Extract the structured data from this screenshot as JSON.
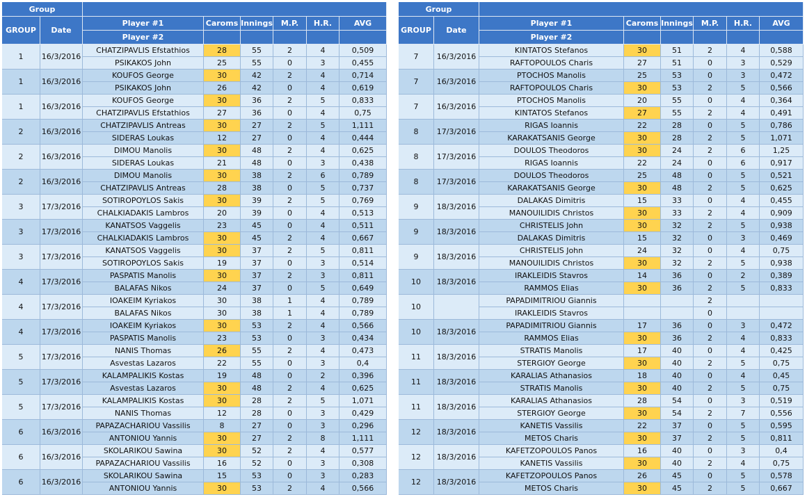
{
  "tables": [
    {
      "header": {
        "group_band": "Group",
        "group": "GROUP",
        "date": "Date",
        "player1": "Player #1",
        "player2": "Player #2",
        "caroms": "Caroms",
        "innings": "Innings",
        "mp": "M.P.",
        "hr": "H.R.",
        "avg": "AVG"
      },
      "matches": [
        {
          "group": 1,
          "date": "16/3/2016",
          "players": [
            [
              "CHATZIPAVLIS Efstathios",
              28,
              55,
              2,
              4,
              "0,509"
            ],
            [
              "PSIKAKOS John",
              25,
              55,
              0,
              3,
              "0,455"
            ]
          ]
        },
        {
          "group": 1,
          "date": "16/3/2016",
          "players": [
            [
              "KOUFOS George",
              30,
              42,
              2,
              4,
              "0,714"
            ],
            [
              "PSIKAKOS John",
              26,
              42,
              0,
              4,
              "0,619"
            ]
          ]
        },
        {
          "group": 1,
          "date": "16/3/2016",
          "players": [
            [
              "KOUFOS George",
              30,
              36,
              2,
              5,
              "0,833"
            ],
            [
              "CHATZIPAVLIS Efstathios",
              27,
              36,
              0,
              4,
              "0,75"
            ]
          ]
        },
        {
          "group": 2,
          "date": "16/3/2016",
          "players": [
            [
              "CHATZIPAVLIS Antreas",
              30,
              27,
              2,
              5,
              "1,111"
            ],
            [
              "SIDERAS Loukas",
              12,
              27,
              0,
              4,
              "0,444"
            ]
          ]
        },
        {
          "group": 2,
          "date": "16/3/2016",
          "players": [
            [
              "DIMOU Manolis",
              30,
              48,
              2,
              4,
              "0,625"
            ],
            [
              "SIDERAS Loukas",
              21,
              48,
              0,
              3,
              "0,438"
            ]
          ]
        },
        {
          "group": 2,
          "date": "16/3/2016",
          "players": [
            [
              "DIMOU Manolis",
              30,
              38,
              2,
              6,
              "0,789"
            ],
            [
              "CHATZIPAVLIS Antreas",
              28,
              38,
              0,
              5,
              "0,737"
            ]
          ]
        },
        {
          "group": 3,
          "date": "17/3/2016",
          "players": [
            [
              "SOTIROPOYLOS Sakis",
              30,
              39,
              2,
              5,
              "0,769"
            ],
            [
              "CHALKIADAKIS Lambros",
              20,
              39,
              0,
              4,
              "0,513"
            ]
          ]
        },
        {
          "group": 3,
          "date": "17/3/2016",
          "players": [
            [
              "KANATSOS Vaggelis",
              23,
              45,
              0,
              4,
              "0,511"
            ],
            [
              "CHALKIADAKIS Lambros",
              30,
              45,
              2,
              4,
              "0,667"
            ]
          ]
        },
        {
          "group": 3,
          "date": "17/3/2016",
          "players": [
            [
              "KANATSOS Vaggelis",
              30,
              37,
              2,
              5,
              "0,811"
            ],
            [
              "SOTIROPOYLOS Sakis",
              19,
              37,
              0,
              3,
              "0,514"
            ]
          ]
        },
        {
          "group": 4,
          "date": "17/3/2016",
          "players": [
            [
              "PASPATIS Manolis",
              30,
              37,
              2,
              3,
              "0,811"
            ],
            [
              "BALAFAS Nikos",
              24,
              37,
              0,
              5,
              "0,649"
            ]
          ]
        },
        {
          "group": 4,
          "date": "17/3/2016",
          "players": [
            [
              "IOAKEIM Kyriakos",
              30,
              38,
              1,
              4,
              "0,789"
            ],
            [
              "BALAFAS Nikos",
              30,
              38,
              1,
              4,
              "0,789"
            ]
          ]
        },
        {
          "group": 4,
          "date": "17/3/2016",
          "players": [
            [
              "IOAKEIM Kyriakos",
              30,
              53,
              2,
              4,
              "0,566"
            ],
            [
              "PASPATIS Manolis",
              23,
              53,
              0,
              3,
              "0,434"
            ]
          ]
        },
        {
          "group": 5,
          "date": "17/3/2016",
          "players": [
            [
              "NANIS Thomas",
              26,
              55,
              2,
              4,
              "0,473"
            ],
            [
              "Asvestas Lazaros",
              22,
              55,
              0,
              3,
              "0,4"
            ]
          ]
        },
        {
          "group": 5,
          "date": "17/3/2016",
          "players": [
            [
              "KALAMPALIKIS Kostas",
              19,
              48,
              0,
              2,
              "0,396"
            ],
            [
              "Asvestas Lazaros",
              30,
              48,
              2,
              4,
              "0,625"
            ]
          ]
        },
        {
          "group": 5,
          "date": "17/3/2016",
          "players": [
            [
              "KALAMPALIKIS Kostas",
              30,
              28,
              2,
              5,
              "1,071"
            ],
            [
              "NANIS Thomas",
              12,
              28,
              0,
              3,
              "0,429"
            ]
          ]
        },
        {
          "group": 6,
          "date": "16/3/2016",
          "players": [
            [
              "PAPAZACHARIOU Vassilis",
              8,
              27,
              0,
              3,
              "0,296"
            ],
            [
              "ANTONIOU Yannis",
              30,
              27,
              2,
              8,
              "1,111"
            ]
          ]
        },
        {
          "group": 6,
          "date": "16/3/2016",
          "players": [
            [
              "SKOLARIKOU Sawina",
              30,
              52,
              2,
              4,
              "0,577"
            ],
            [
              "PAPAZACHARIOU Vassilis",
              16,
              52,
              0,
              3,
              "0,308"
            ]
          ]
        },
        {
          "group": 6,
          "date": "16/3/2016",
          "players": [
            [
              "SKOLARIKOU Sawina",
              15,
              53,
              0,
              3,
              "0,283"
            ],
            [
              "ANTONIOU Yannis",
              30,
              53,
              2,
              4,
              "0,566"
            ]
          ]
        }
      ]
    },
    {
      "header": {
        "group_band": "Group",
        "group": "GROUP",
        "date": "Date",
        "player1": "Player #1",
        "player2": "Player #2",
        "caroms": "Caroms",
        "innings": "Innings",
        "mp": "M.P.",
        "hr": "H.R.",
        "avg": "AVG"
      },
      "matches": [
        {
          "group": 7,
          "date": "16/3/2016",
          "players": [
            [
              "KINTATOS Stefanos",
              30,
              51,
              2,
              4,
              "0,588"
            ],
            [
              "RAFTOPOULOS Charis",
              27,
              51,
              0,
              3,
              "0,529"
            ]
          ]
        },
        {
          "group": 7,
          "date": "16/3/2016",
          "players": [
            [
              "PTOCHOS Manolis",
              25,
              53,
              0,
              3,
              "0,472"
            ],
            [
              "RAFTOPOULOS Charis",
              30,
              53,
              2,
              5,
              "0,566"
            ]
          ]
        },
        {
          "group": 7,
          "date": "16/3/2016",
          "players": [
            [
              "PTOCHOS Manolis",
              20,
              55,
              0,
              4,
              "0,364"
            ],
            [
              "KINTATOS Stefanos",
              27,
              55,
              2,
              4,
              "0,491"
            ]
          ]
        },
        {
          "group": 8,
          "date": "17/3/2016",
          "players": [
            [
              "RIGAS Ioannis",
              22,
              28,
              0,
              5,
              "0,786"
            ],
            [
              "KARAKATSANIS George",
              30,
              28,
              2,
              5,
              "1,071"
            ]
          ]
        },
        {
          "group": 8,
          "date": "17/3/2016",
          "players": [
            [
              "DOULOS Theodoros",
              30,
              24,
              2,
              6,
              "1,25"
            ],
            [
              "RIGAS Ioannis",
              22,
              24,
              0,
              6,
              "0,917"
            ]
          ]
        },
        {
          "group": 8,
          "date": "17/3/2016",
          "players": [
            [
              "DOULOS Theodoros",
              25,
              48,
              0,
              5,
              "0,521"
            ],
            [
              "KARAKATSANIS George",
              30,
              48,
              2,
              5,
              "0,625"
            ]
          ]
        },
        {
          "group": 9,
          "date": "18/3/2016",
          "players": [
            [
              "DALAKAS Dimitris",
              15,
              33,
              0,
              4,
              "0,455"
            ],
            [
              "MANOUILIDIS Christos",
              30,
              33,
              2,
              4,
              "0,909"
            ]
          ]
        },
        {
          "group": 9,
          "date": "18/3/2016",
          "players": [
            [
              "CHRISTELIS John",
              30,
              32,
              2,
              5,
              "0,938"
            ],
            [
              "DALAKAS Dimitris",
              15,
              32,
              0,
              3,
              "0,469"
            ]
          ]
        },
        {
          "group": 9,
          "date": "18/3/2016",
          "players": [
            [
              "CHRISTELIS John",
              24,
              32,
              0,
              4,
              "0,75"
            ],
            [
              "MANOUILIDIS Christos",
              30,
              32,
              2,
              5,
              "0,938"
            ]
          ]
        },
        {
          "group": 10,
          "date": "18/3/2016",
          "players": [
            [
              "IRAKLEIDIS Stavros",
              14,
              36,
              0,
              2,
              "0,389"
            ],
            [
              "RAMMOS Elias",
              30,
              36,
              2,
              5,
              "0,833"
            ]
          ]
        },
        {
          "group": 10,
          "date": null,
          "players": [
            [
              "PAPADIMITRIOU Giannis",
              null,
              null,
              2,
              null,
              null
            ],
            [
              "IRAKLEIDIS Stavros",
              null,
              null,
              0,
              null,
              null
            ]
          ]
        },
        {
          "group": 10,
          "date": "18/3/2016",
          "players": [
            [
              "PAPADIMITRIOU Giannis",
              17,
              36,
              0,
              3,
              "0,472"
            ],
            [
              "RAMMOS Elias",
              30,
              36,
              2,
              4,
              "0,833"
            ]
          ]
        },
        {
          "group": 11,
          "date": "18/3/2016",
          "players": [
            [
              "STRATIS Manolis",
              17,
              40,
              0,
              4,
              "0,425"
            ],
            [
              "STERGIOY George",
              30,
              40,
              2,
              5,
              "0,75"
            ]
          ]
        },
        {
          "group": 11,
          "date": "18/3/2016",
          "players": [
            [
              "KARALIAS Athanasios",
              18,
              40,
              0,
              4,
              "0,45"
            ],
            [
              "STRATIS Manolis",
              30,
              40,
              2,
              5,
              "0,75"
            ]
          ]
        },
        {
          "group": 11,
          "date": "18/3/2016",
          "players": [
            [
              "KARALIAS Athanasios",
              28,
              54,
              0,
              3,
              "0,519"
            ],
            [
              "STERGIOY George",
              30,
              54,
              2,
              7,
              "0,556"
            ]
          ]
        },
        {
          "group": 12,
          "date": "18/3/2016",
          "players": [
            [
              "KANETIS Vassilis",
              22,
              37,
              0,
              5,
              "0,595"
            ],
            [
              "METOS Charis",
              30,
              37,
              2,
              5,
              "0,811"
            ]
          ]
        },
        {
          "group": 12,
          "date": "18/3/2016",
          "players": [
            [
              "KAFETZOPOULOS Panos",
              16,
              40,
              0,
              3,
              "0,4"
            ],
            [
              "KANETIS Vassilis",
              30,
              40,
              2,
              4,
              "0,75"
            ]
          ]
        },
        {
          "group": 12,
          "date": "18/3/2016",
          "players": [
            [
              "KAFETZOPOULOS Panos",
              26,
              45,
              0,
              5,
              "0,578"
            ],
            [
              "METOS Charis",
              30,
              45,
              2,
              5,
              "0,667"
            ]
          ]
        }
      ]
    }
  ]
}
